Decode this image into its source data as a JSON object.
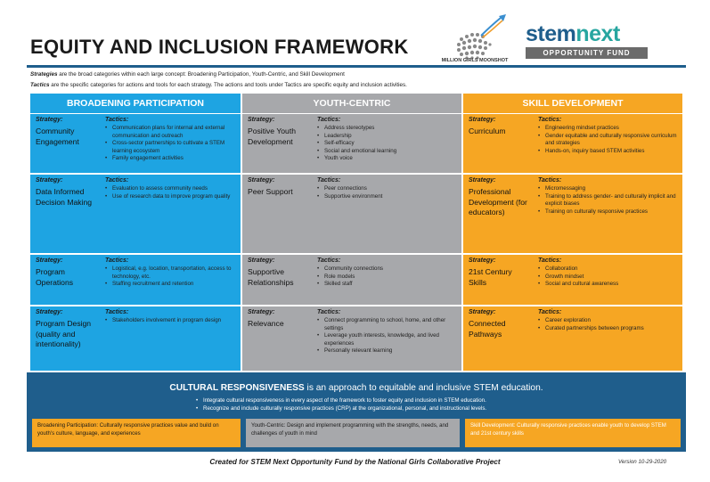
{
  "header": {
    "title": "EQUITY AND INCLUSION FRAMEWORK",
    "logo_left_text": "MILLION GIRLS MOONSHOT",
    "logo_right_word_a": "stem",
    "logo_right_word_b": "next",
    "logo_right_band": "OPPORTUNITY FUND"
  },
  "intro": {
    "line1_term": "Strategies",
    "line1_text": " are the broad categories within each large concept:  Broadening Participation, Youth-Centric, and Skill Development",
    "line2_term": "Tactics",
    "line2_text": " are the specific categories for actions and tools for each strategy. The actions and tools under Tactics are specific equity and inclusion activities."
  },
  "labels": {
    "strategy": "Strategy:",
    "tactics": "Tactics:"
  },
  "columns": [
    {
      "heading": "BROADENING PARTICIPATION",
      "cells": [
        {
          "strategy": "Community Engagement",
          "tactics": [
            "Communication plans for  internal and external communication and outreach",
            "Cross-sector partnerships to cultivate a STEM learning ecosystem",
            "Family engagement activities"
          ]
        },
        {
          "strategy": "Data Informed Decision Making",
          "tactics": [
            "Evaluation to assess community needs",
            "Use of research data to improve program quality"
          ]
        },
        {
          "strategy": "Program Operations",
          "tactics": [
            "Logistical, e.g. location, transportation, access to technology, etc.",
            "Staffing recruitment and retention"
          ]
        },
        {
          "strategy": "Program Design (quality and intentionality)",
          "tactics": [
            "Stakeholders involvement in program design"
          ]
        }
      ]
    },
    {
      "heading": "YOUTH-CENTRIC",
      "cells": [
        {
          "strategy": "Positive Youth Development",
          "tactics": [
            "Address stereotypes",
            "Leadership",
            "Self-efficacy",
            "Social and emotional learning",
            "Youth voice"
          ]
        },
        {
          "strategy": "Peer Support",
          "tactics": [
            "Peer connections",
            "Supportive environment"
          ]
        },
        {
          "strategy": "Supportive Relationships",
          "tactics": [
            "Community connections",
            "Role models",
            "Skilled staff"
          ]
        },
        {
          "strategy": "Relevance",
          "tactics": [
            "Connect programming to school, home, and other settings",
            "Leverage youth interests, knowledge, and lived experiences",
            "Personally relevant learning"
          ]
        }
      ]
    },
    {
      "heading": "SKILL DEVELOPMENT",
      "cells": [
        {
          "strategy": "Curriculum",
          "tactics": [
            "Engineering mindset practices",
            "Gender equitable and culturally responsive curriculum and strategies",
            "Hands-on, inquiry based STEM activities"
          ]
        },
        {
          "strategy": "Professional Development (for educators)",
          "tactics": [
            "Micromessaging",
            "Training to address gender- and culturally implicit and explicit biases",
            "Training on culturally responsive practices"
          ]
        },
        {
          "strategy": "21st Century Skills",
          "tactics": [
            "Collaboration",
            "Growth mindset",
            "Social and cultural awareness"
          ]
        },
        {
          "strategy": "Connected Pathways",
          "tactics": [
            "Career exploration",
            "Curated partnerships between programs"
          ]
        }
      ]
    }
  ],
  "cultural": {
    "title_bold": "CULTURAL RESPONSIVENESS",
    "title_rest": " is an approach to equitable and inclusive STEM education.",
    "bullets": [
      "Integrate cultural responsiveness in every aspect of the framework to foster equity and inclusion in STEM education.",
      "Recognize and include culturally responsive practices (CRP) at the organizational, personal, and instructional levels."
    ],
    "boxes": [
      {
        "term": "Broadening Participation:",
        "text": " Culturally responsive practices value and build on youth's culture, language, and experiences"
      },
      {
        "term": "Youth-Centric:",
        "text": " Design and implement programming with the strengths, needs, and challenges of youth in mind"
      },
      {
        "term": "Skill Development:",
        "text": " Culturally responsive practices enable youth to develop STEM and 21st century skills"
      }
    ]
  },
  "footer": {
    "credit": "Created for STEM Next Opportunity Fund by the National Girls Collaborative Project",
    "version": "Version 10-29-2020"
  },
  "colors": {
    "blue": "#1ea4e2",
    "gray": "#a7a8ab",
    "orange": "#f6a623",
    "navy": "#1f5e8c"
  }
}
